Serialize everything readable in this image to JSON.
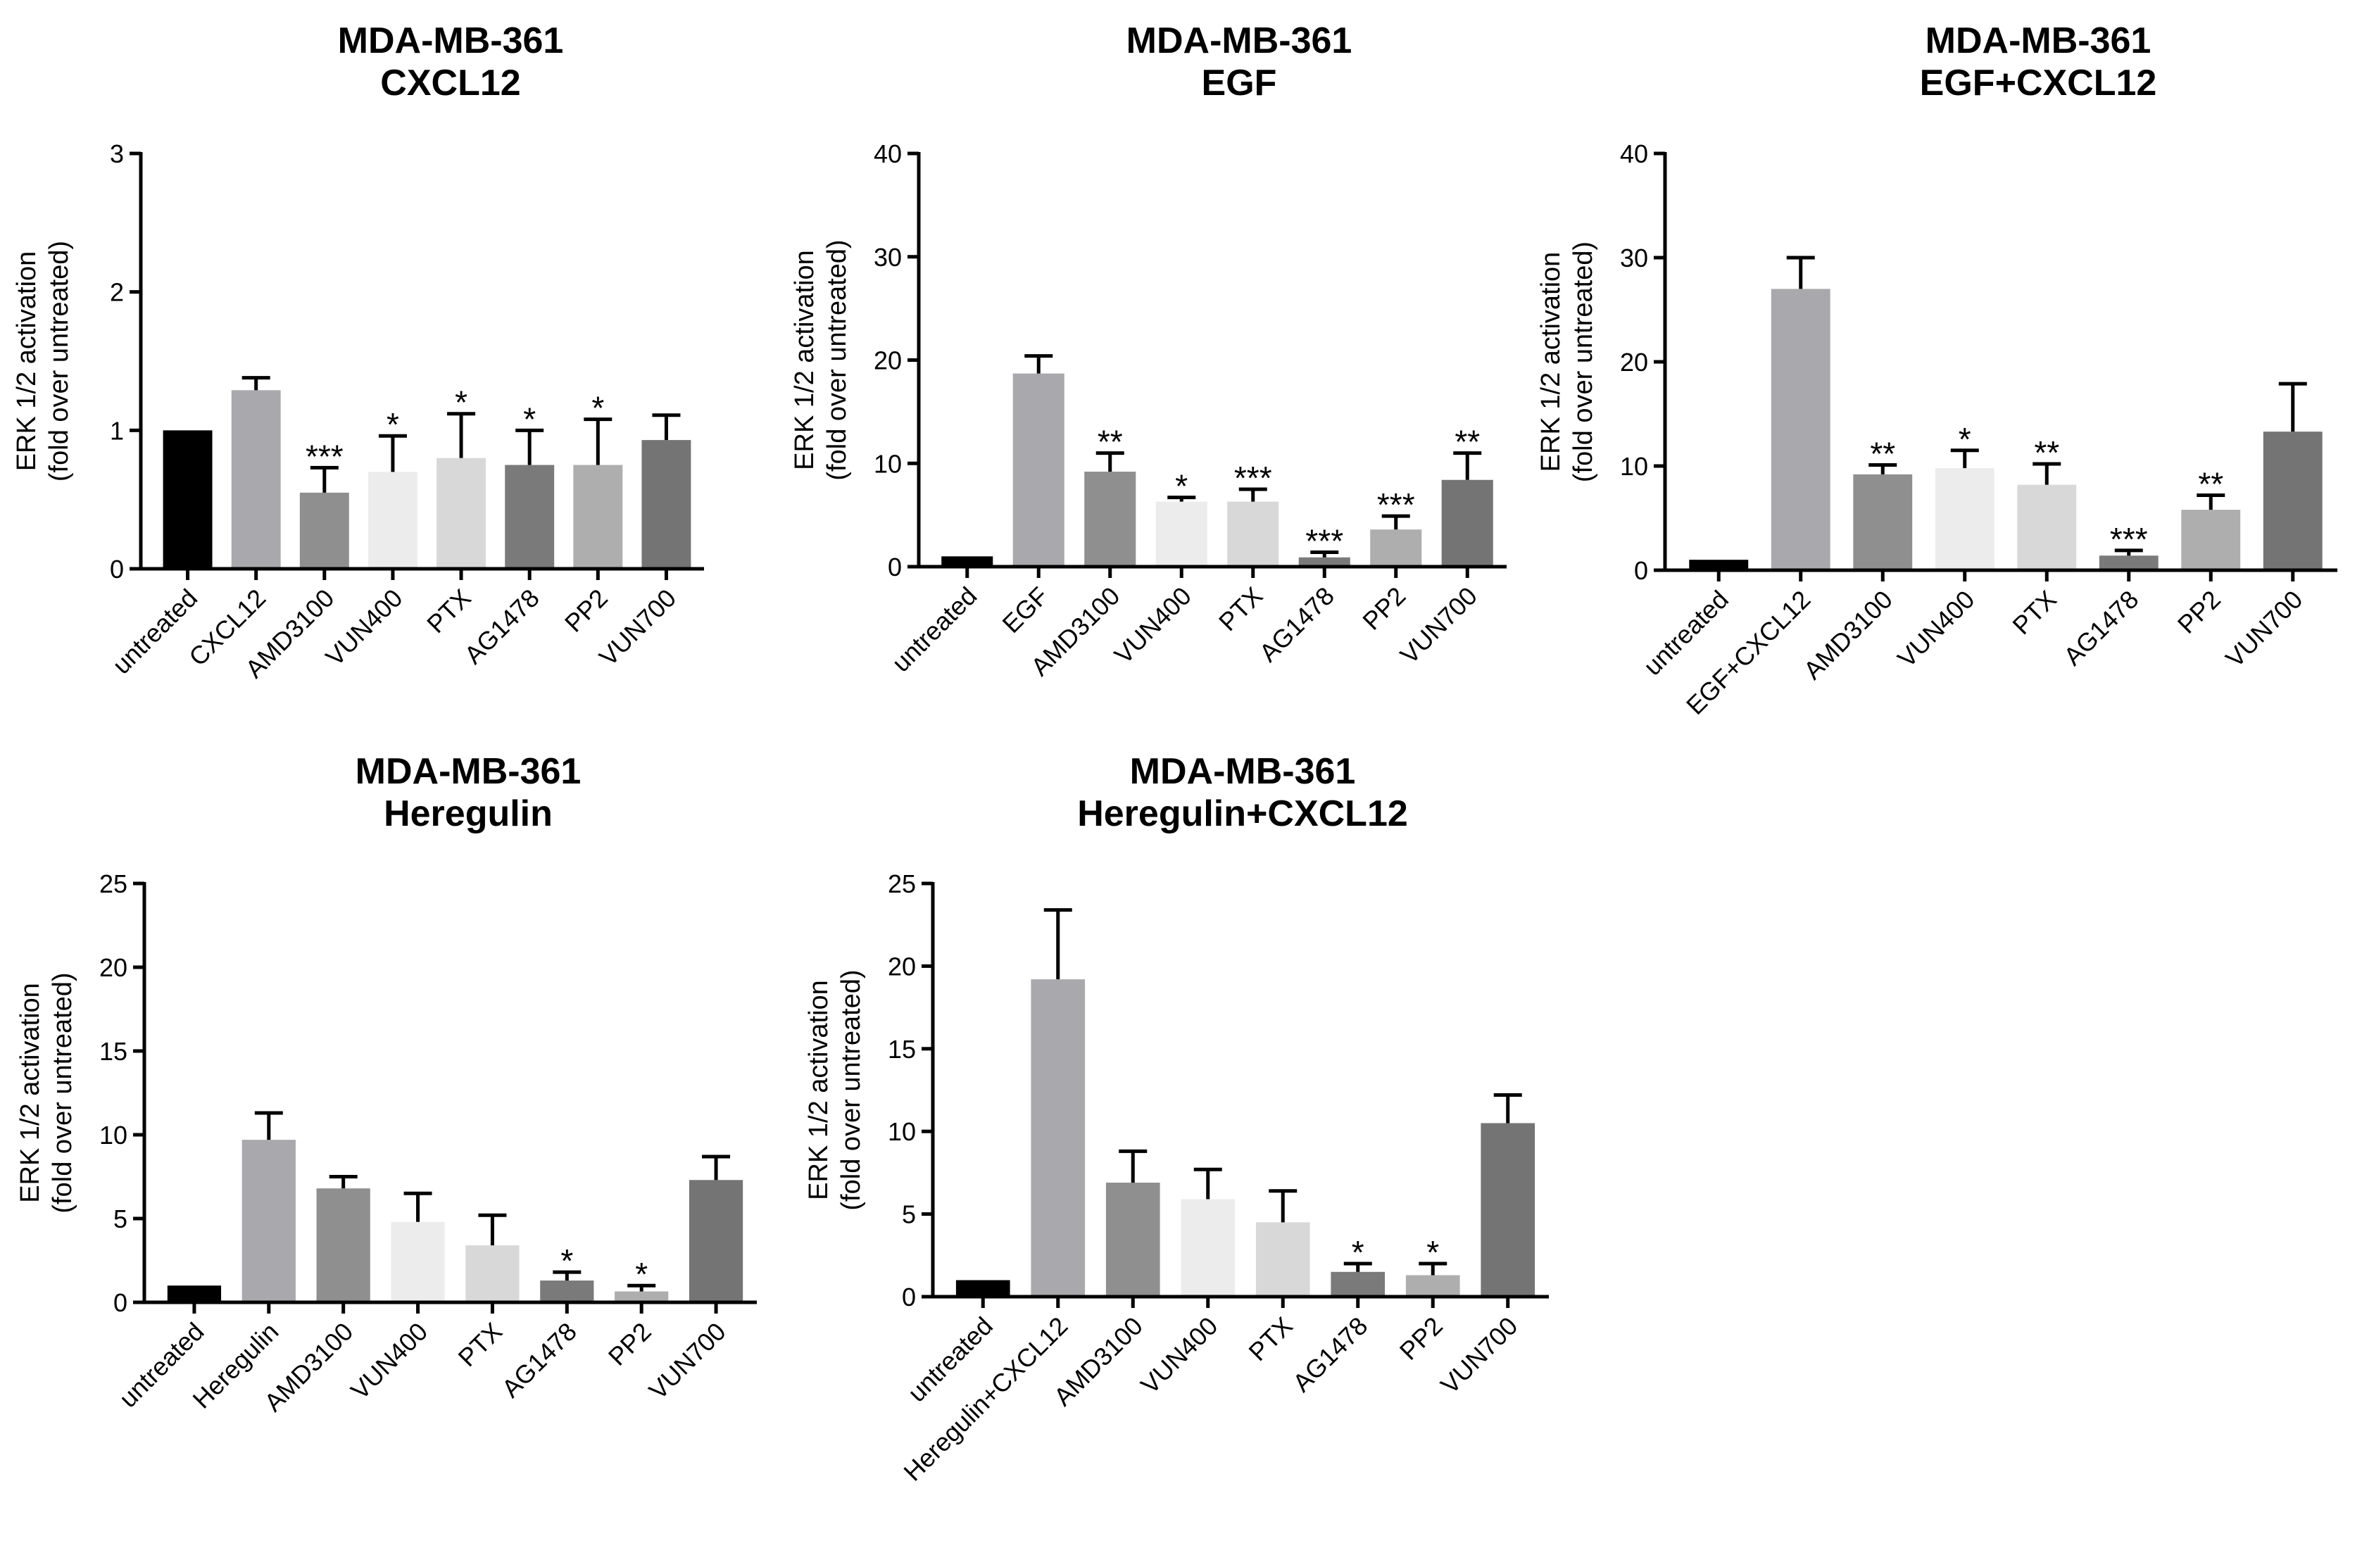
{
  "chart_data": [
    {
      "type": "bar",
      "title": [
        "MDA-MB-361",
        "CXCL12"
      ],
      "ylabel": [
        "ERK 1/2 activation",
        "(fold over untreated)"
      ],
      "ylim": [
        0,
        3
      ],
      "yticks": [
        0,
        1,
        2,
        3
      ],
      "categories": [
        "untreated",
        "CXCL12",
        "AMD3100",
        "VUN400",
        "PTX",
        "AG1478",
        "PP2",
        "VUN700"
      ],
      "values": [
        1.0,
        1.29,
        0.55,
        0.7,
        0.8,
        0.75,
        0.75,
        0.93
      ],
      "errors": [
        0,
        0.09,
        0.18,
        0.26,
        0.32,
        0.25,
        0.33,
        0.18
      ],
      "significance": [
        "",
        "",
        "***",
        "*",
        "*",
        "*",
        "*",
        ""
      ],
      "colors": [
        "#000000",
        "#a9a9ad",
        "#8f8f8f",
        "#ececec",
        "#d8d8d8",
        "#7a7a7a",
        "#aeaeae",
        "#747474"
      ]
    },
    {
      "type": "bar",
      "title": [
        "MDA-MB-361",
        "EGF"
      ],
      "ylabel": [
        "ERK 1/2 activation",
        "(fold over untreated)"
      ],
      "ylim": [
        0,
        40
      ],
      "yticks": [
        0,
        10,
        20,
        30,
        40
      ],
      "categories": [
        "untreated",
        "EGF",
        "AMD3100",
        "VUN400",
        "PTX",
        "AG1478",
        "PP2",
        "VUN700"
      ],
      "values": [
        1.0,
        18.7,
        9.2,
        6.3,
        6.3,
        0.9,
        3.6,
        8.4
      ],
      "errors": [
        0,
        1.7,
        1.8,
        0.4,
        1.2,
        0.5,
        1.3,
        2.6
      ],
      "significance": [
        "",
        "",
        "**",
        "*",
        "***",
        "***",
        "***",
        "**"
      ],
      "colors": [
        "#000000",
        "#a9a9ad",
        "#8f8f8f",
        "#ececec",
        "#d8d8d8",
        "#7a7a7a",
        "#aeaeae",
        "#747474"
      ]
    },
    {
      "type": "bar",
      "title": [
        "MDA-MB-361",
        "EGF+CXCL12"
      ],
      "ylabel": [
        "ERK 1/2 activation",
        "(fold over untreated)"
      ],
      "ylim": [
        0,
        40
      ],
      "yticks": [
        0,
        10,
        20,
        30,
        40
      ],
      "categories": [
        "untreated",
        "EGF+CXCL12",
        "AMD3100",
        "VUN400",
        "PTX",
        "AG1478",
        "PP2",
        "VUN700"
      ],
      "values": [
        1.0,
        27.0,
        9.2,
        9.8,
        8.2,
        1.4,
        5.8,
        13.3
      ],
      "errors": [
        0,
        3.0,
        0.9,
        1.7,
        2.0,
        0.5,
        1.4,
        4.6
      ],
      "significance": [
        "",
        "",
        "**",
        "*",
        "**",
        "***",
        "**",
        ""
      ],
      "colors": [
        "#000000",
        "#a9a9ad",
        "#8f8f8f",
        "#ececec",
        "#d8d8d8",
        "#7a7a7a",
        "#aeaeae",
        "#747474"
      ]
    },
    {
      "type": "bar",
      "title": [
        "MDA-MB-361",
        "Heregulin"
      ],
      "ylabel": [
        "ERK 1/2 activation",
        "(fold over untreated)"
      ],
      "ylim": [
        0,
        25
      ],
      "yticks": [
        0,
        5,
        10,
        15,
        20,
        25
      ],
      "categories": [
        "untreated",
        "Heregulin",
        "AMD3100",
        "VUN400",
        "PTX",
        "AG1478",
        "PP2",
        "VUN700"
      ],
      "values": [
        1.0,
        9.7,
        6.8,
        4.8,
        3.4,
        1.3,
        0.65,
        7.3
      ],
      "errors": [
        0,
        1.6,
        0.7,
        1.7,
        1.8,
        0.5,
        0.35,
        1.4
      ],
      "significance": [
        "",
        "",
        "",
        "",
        "",
        "*",
        "*",
        ""
      ],
      "colors": [
        "#000000",
        "#a9a9ad",
        "#8f8f8f",
        "#ececec",
        "#d8d8d8",
        "#7a7a7a",
        "#aeaeae",
        "#747474"
      ]
    },
    {
      "type": "bar",
      "title": [
        "MDA-MB-361",
        "Heregulin+CXCL12"
      ],
      "ylabel": [
        "ERK 1/2 activation",
        "(fold over untreated)"
      ],
      "ylim": [
        0,
        25
      ],
      "yticks": [
        0,
        5,
        10,
        15,
        20,
        25
      ],
      "categories": [
        "untreated",
        "Heregulin+CXCL12",
        "AMD3100",
        "VUN400",
        "PTX",
        "AG1478",
        "PP2",
        "VUN700"
      ],
      "values": [
        1.0,
        19.2,
        6.9,
        5.9,
        4.5,
        1.5,
        1.3,
        10.5
      ],
      "errors": [
        0,
        4.2,
        1.9,
        1.8,
        1.9,
        0.5,
        0.7,
        1.7
      ],
      "significance": [
        "",
        "",
        "",
        "",
        "",
        "*",
        "*",
        ""
      ],
      "colors": [
        "#000000",
        "#a9a9ad",
        "#8f8f8f",
        "#ececec",
        "#d8d8d8",
        "#7a7a7a",
        "#aeaeae",
        "#747474"
      ]
    }
  ]
}
